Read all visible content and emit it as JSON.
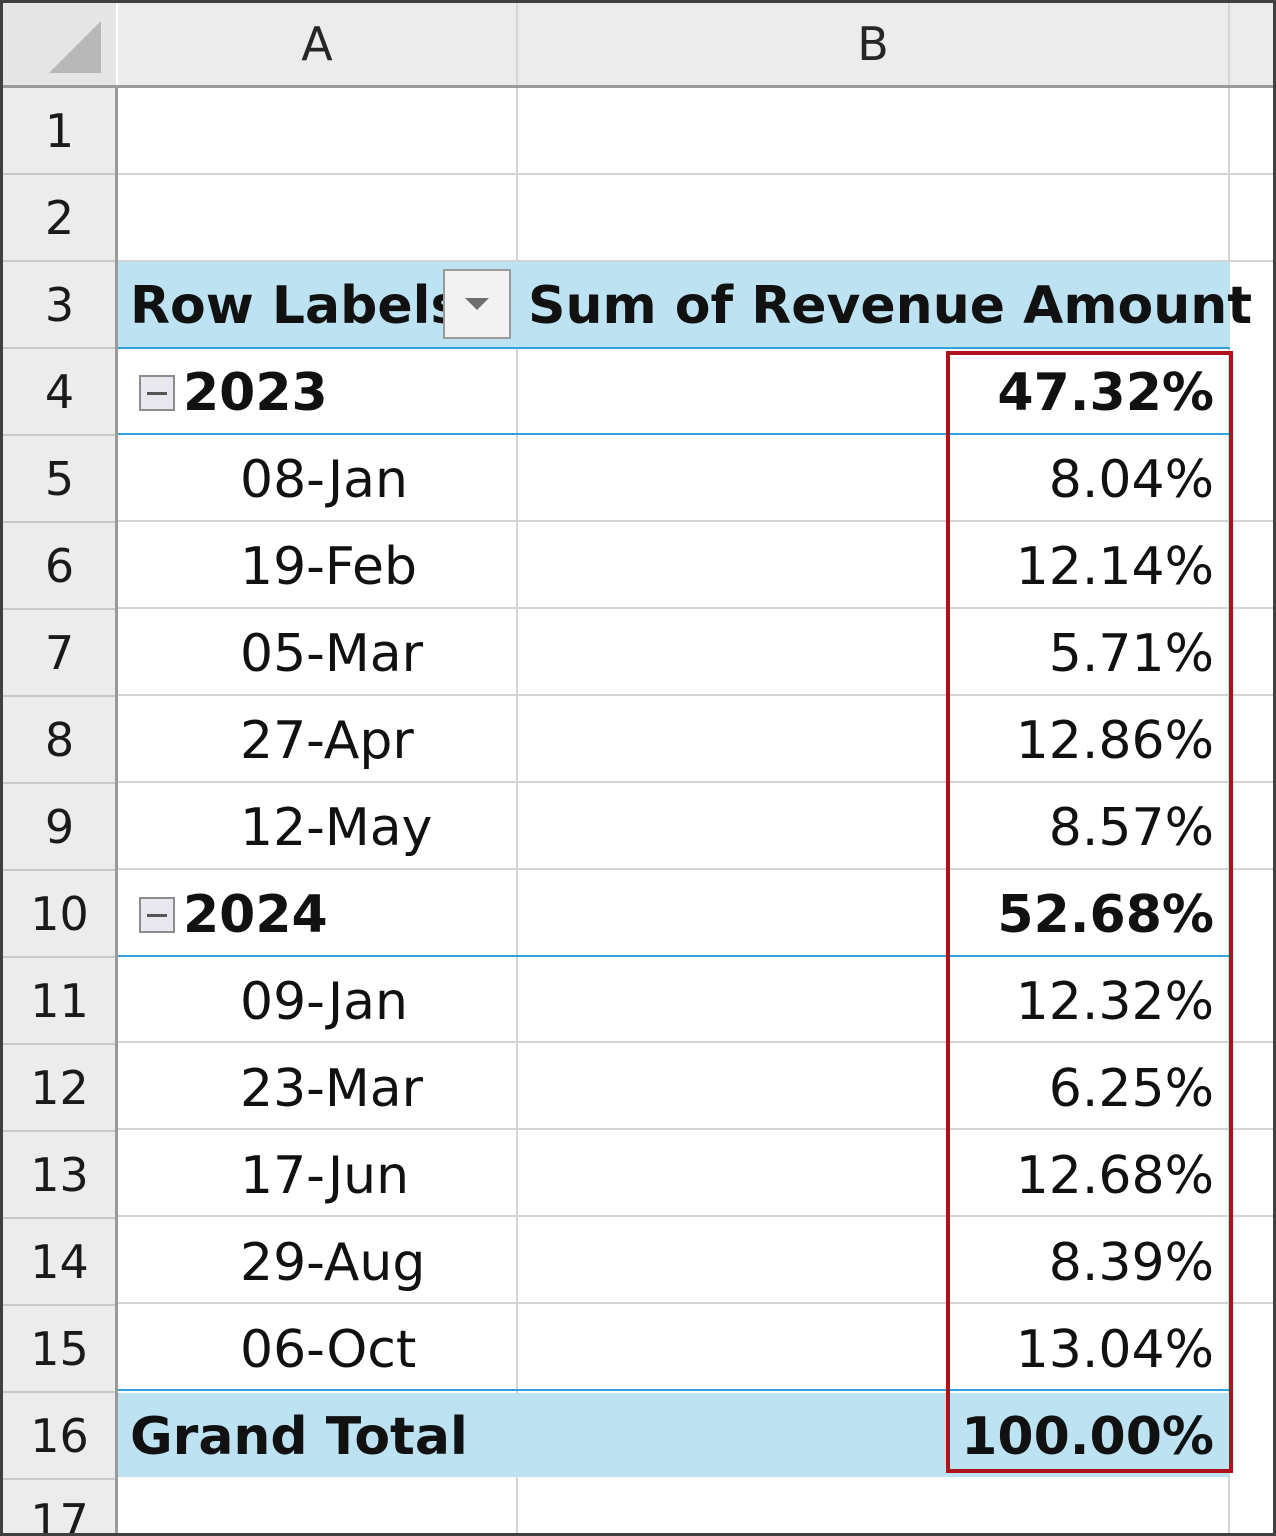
{
  "columns": [
    "A",
    "B"
  ],
  "row_numbers": [
    "1",
    "2",
    "3",
    "4",
    "5",
    "6",
    "7",
    "8",
    "9",
    "10",
    "11",
    "12",
    "13",
    "14",
    "15",
    "16",
    "17"
  ],
  "pivot": {
    "header": {
      "row_labels": "Row Labels",
      "value_field": "Sum of Revenue Amount"
    },
    "groups": [
      {
        "label": "2023",
        "value": "47.32%",
        "items": [
          {
            "label": "08-Jan",
            "value": "8.04%"
          },
          {
            "label": "19-Feb",
            "value": "12.14%"
          },
          {
            "label": "05-Mar",
            "value": "5.71%"
          },
          {
            "label": "27-Apr",
            "value": "12.86%"
          },
          {
            "label": "12-May",
            "value": "8.57%"
          }
        ]
      },
      {
        "label": "2024",
        "value": "52.68%",
        "items": [
          {
            "label": "09-Jan",
            "value": "12.32%"
          },
          {
            "label": "23-Mar",
            "value": "6.25%"
          },
          {
            "label": "17-Jun",
            "value": "12.68%"
          },
          {
            "label": "29-Aug",
            "value": "8.39%"
          },
          {
            "label": "06-Oct",
            "value": "13.04%"
          }
        ]
      }
    ],
    "grand_total": {
      "label": "Grand Total",
      "value": "100.00%"
    }
  },
  "colors": {
    "pivot_band": "#bde3f3",
    "pivot_rule": "#2ea3d9",
    "highlight": "#b0121b"
  },
  "icons": {
    "filter": "dropdown-arrow-icon",
    "collapse": "minus-collapse-icon"
  }
}
